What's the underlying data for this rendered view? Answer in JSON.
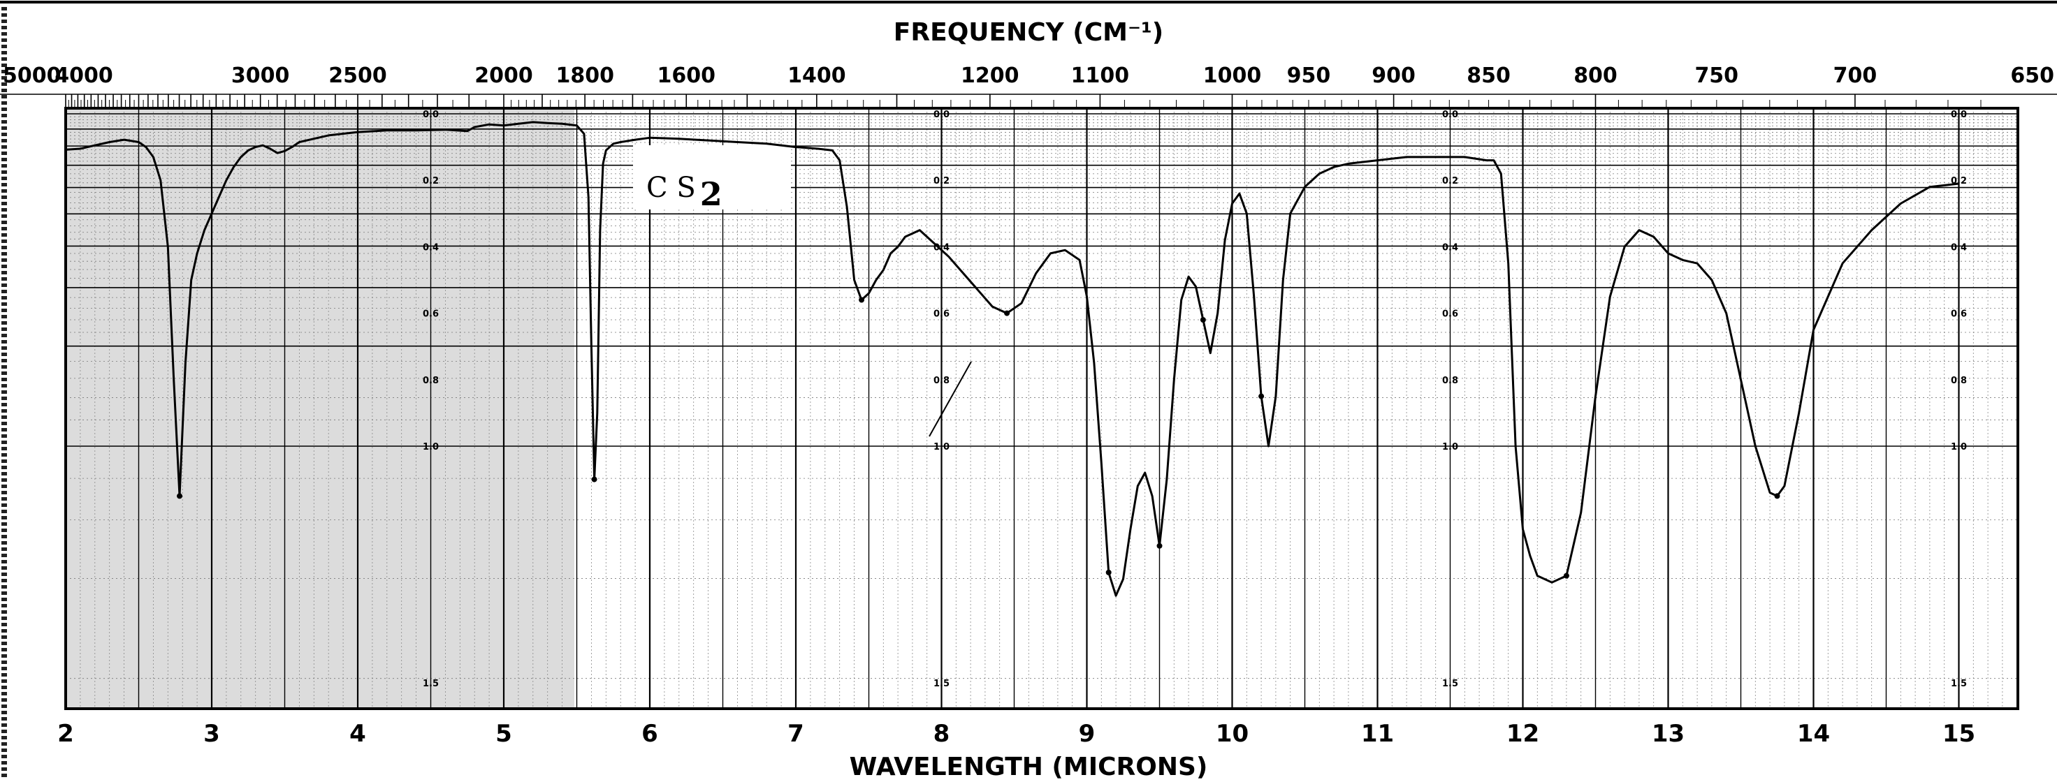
{
  "chart_data": {
    "type": "line",
    "title": "C S2",
    "compound_main": "C S",
    "compound_sub": "2",
    "top_axis_label": "FREQUENCY (CM⁻¹)",
    "bottom_axis_label": "WAVELENGTH (MICRONS)",
    "xlim": [
      2,
      15.5
    ],
    "frequency_ticks": [
      {
        "label": "5000",
        "wl": 2.0
      },
      {
        "label": "4000",
        "wl": 2.5
      },
      {
        "label": "3000",
        "wl": 3.333
      },
      {
        "label": "2500",
        "wl": 4.0
      },
      {
        "label": "2000",
        "wl": 5.0
      },
      {
        "label": "1800",
        "wl": 5.556
      },
      {
        "label": "1600",
        "wl": 6.25
      },
      {
        "label": "1400",
        "wl": 7.143
      },
      {
        "label": "1200",
        "wl": 8.333
      },
      {
        "label": "1100",
        "wl": 9.091
      },
      {
        "label": "1000",
        "wl": 10.0
      },
      {
        "label": "950",
        "wl": 10.526
      },
      {
        "label": "900",
        "wl": 11.111
      },
      {
        "label": "850",
        "wl": 11.765
      },
      {
        "label": "800",
        "wl": 12.5
      },
      {
        "label": "750",
        "wl": 13.333
      },
      {
        "label": "700",
        "wl": 14.286
      },
      {
        "label": "650",
        "wl": 15.385
      }
    ],
    "wavelength_ticks": [
      "2",
      "3",
      "4",
      "5",
      "6",
      "7",
      "8",
      "9",
      "10",
      "11",
      "12",
      "13",
      "14",
      "15"
    ],
    "absorbance_labels": [
      "0.0",
      "0.2",
      "0.4",
      "0.6",
      "0.8",
      "1.0",
      "1.5"
    ],
    "absorbance_label_columns": [
      4.5,
      8.0,
      11.5,
      15.0
    ],
    "ylim": [
      1.8,
      0.0
    ],
    "series": [
      {
        "x": [
          2.0,
          2.1,
          2.2,
          2.3,
          2.4,
          2.5,
          2.55,
          2.6,
          2.65,
          2.7,
          2.74,
          2.78,
          2.82,
          2.86,
          2.9,
          2.95,
          3.0,
          3.05,
          3.1,
          3.15,
          3.2,
          3.25,
          3.3,
          3.35,
          3.4,
          3.45,
          3.5,
          3.55,
          3.6,
          3.7,
          3.8,
          4.0,
          4.2,
          4.4,
          4.6,
          4.75,
          4.8,
          4.9,
          5.0,
          5.1,
          5.2,
          5.3,
          5.4,
          5.5,
          5.55,
          5.58,
          5.6,
          5.62,
          5.64,
          5.66,
          5.68,
          5.7,
          5.75,
          5.8,
          5.9,
          6.0,
          6.2,
          6.4,
          6.6,
          6.8,
          7.0,
          7.15,
          7.25,
          7.3,
          7.35,
          7.4,
          7.45,
          7.5,
          7.55,
          7.6,
          7.65,
          7.7,
          7.75,
          7.85,
          7.95,
          8.05,
          8.15,
          8.25,
          8.35,
          8.45,
          8.55,
          8.65,
          8.75,
          8.85,
          8.95,
          9.0,
          9.05,
          9.1,
          9.15,
          9.2,
          9.25,
          9.3,
          9.35,
          9.4,
          9.45,
          9.5,
          9.55,
          9.6,
          9.65,
          9.7,
          9.75,
          9.8,
          9.85,
          9.9,
          9.95,
          10.0,
          10.05,
          10.1,
          10.15,
          10.2,
          10.25,
          10.3,
          10.35,
          10.4,
          10.5,
          10.6,
          10.7,
          10.8,
          11.0,
          11.2,
          11.4,
          11.6,
          11.75,
          11.8,
          11.85,
          11.9,
          11.95,
          12.0,
          12.05,
          12.1,
          12.2,
          12.3,
          12.4,
          12.5,
          12.6,
          12.7,
          12.8,
          12.9,
          13.0,
          13.1,
          13.2,
          13.3,
          13.4,
          13.5,
          13.6,
          13.7,
          13.75,
          13.8,
          13.9,
          14.0,
          14.2,
          14.4,
          14.6,
          14.8,
          15.0
        ],
        "y": [
          0.108,
          0.105,
          0.095,
          0.085,
          0.078,
          0.085,
          0.1,
          0.13,
          0.2,
          0.4,
          0.8,
          1.15,
          0.75,
          0.5,
          0.42,
          0.35,
          0.3,
          0.25,
          0.2,
          0.16,
          0.13,
          0.11,
          0.1,
          0.095,
          0.105,
          0.118,
          0.112,
          0.1,
          0.085,
          0.075,
          0.065,
          0.055,
          0.05,
          0.05,
          0.048,
          0.052,
          0.04,
          0.032,
          0.035,
          0.03,
          0.025,
          0.028,
          0.03,
          0.035,
          0.06,
          0.25,
          0.7,
          1.1,
          0.9,
          0.35,
          0.15,
          0.11,
          0.09,
          0.085,
          0.078,
          0.072,
          0.075,
          0.08,
          0.085,
          0.09,
          0.1,
          0.105,
          0.11,
          0.14,
          0.28,
          0.5,
          0.56,
          0.54,
          0.5,
          0.47,
          0.42,
          0.4,
          0.37,
          0.35,
          0.39,
          0.43,
          0.48,
          0.53,
          0.58,
          0.6,
          0.57,
          0.48,
          0.42,
          0.41,
          0.44,
          0.55,
          0.75,
          1.05,
          1.38,
          1.45,
          1.4,
          1.25,
          1.12,
          1.08,
          1.15,
          1.3,
          1.1,
          0.8,
          0.56,
          0.49,
          0.52,
          0.62,
          0.72,
          0.6,
          0.38,
          0.27,
          0.24,
          0.3,
          0.55,
          0.85,
          1.0,
          0.85,
          0.5,
          0.3,
          0.22,
          0.18,
          0.16,
          0.15,
          0.14,
          0.13,
          0.13,
          0.13,
          0.14,
          0.14,
          0.18,
          0.45,
          1.0,
          1.25,
          1.33,
          1.39,
          1.41,
          1.39,
          1.2,
          0.85,
          0.55,
          0.4,
          0.35,
          0.37,
          0.42,
          0.44,
          0.45,
          0.5,
          0.6,
          0.8,
          1.0,
          1.14,
          1.15,
          1.12,
          0.9,
          0.65,
          0.45,
          0.35,
          0.27,
          0.22,
          0.21
        ]
      }
    ]
  }
}
